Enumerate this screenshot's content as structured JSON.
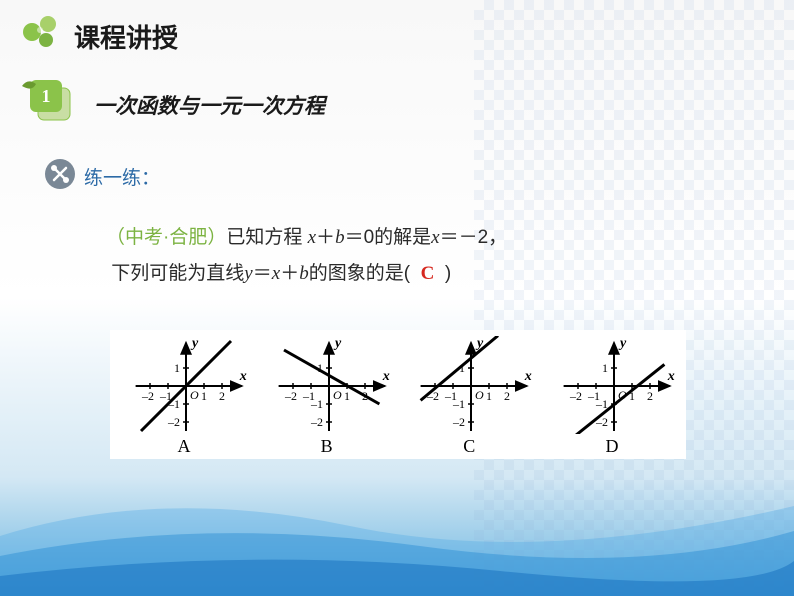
{
  "header": {
    "course_title": "课程讲授",
    "section_number": "1",
    "section_title": "一次函数与一元一次方程",
    "practice_label": "练一练："
  },
  "question": {
    "source_prefix": "（中考·合肥）",
    "line1_a": "已知方程 ",
    "line1_var1": "x",
    "line1_b": "＋",
    "line1_var2": "b",
    "line1_c": "＝0的解是",
    "line1_var3": "x",
    "line1_d": "＝－2，",
    "line2_a": "下列可能为直线",
    "line2_var1": "y",
    "line2_b": "＝",
    "line2_var2": "x",
    "line2_c": "＋",
    "line2_var3": "b",
    "line2_d": "的图象的是(",
    "answer": "C",
    "line2_e": ")"
  },
  "graphs": {
    "axis": {
      "x_ticks": [
        -2,
        -1,
        1,
        2
      ],
      "y_ticks": [
        -2,
        -1,
        1
      ],
      "x_label": "x",
      "y_label": "y",
      "origin_label": "O"
    },
    "items": [
      {
        "label": "A",
        "line": {
          "x1": -2.5,
          "y1": -2.5,
          "x2": 2.5,
          "y2": 2.5
        }
      },
      {
        "label": "B",
        "line": {
          "x1": -2.5,
          "y1": 2.0,
          "x2": 2.8,
          "y2": -1.0
        }
      },
      {
        "label": "C",
        "line": {
          "x1": -2.8,
          "y1": -0.8,
          "x2": 1.5,
          "y2": 2.8
        }
      },
      {
        "label": "D",
        "line": {
          "x1": -2.2,
          "y1": -2.8,
          "x2": 2.8,
          "y2": 1.2
        }
      }
    ]
  },
  "style": {
    "axis_color": "#000000",
    "tick_font_size": 12,
    "label_font_size": 14,
    "line_color": "#000000",
    "line_width": 3,
    "axis_width": 2
  }
}
